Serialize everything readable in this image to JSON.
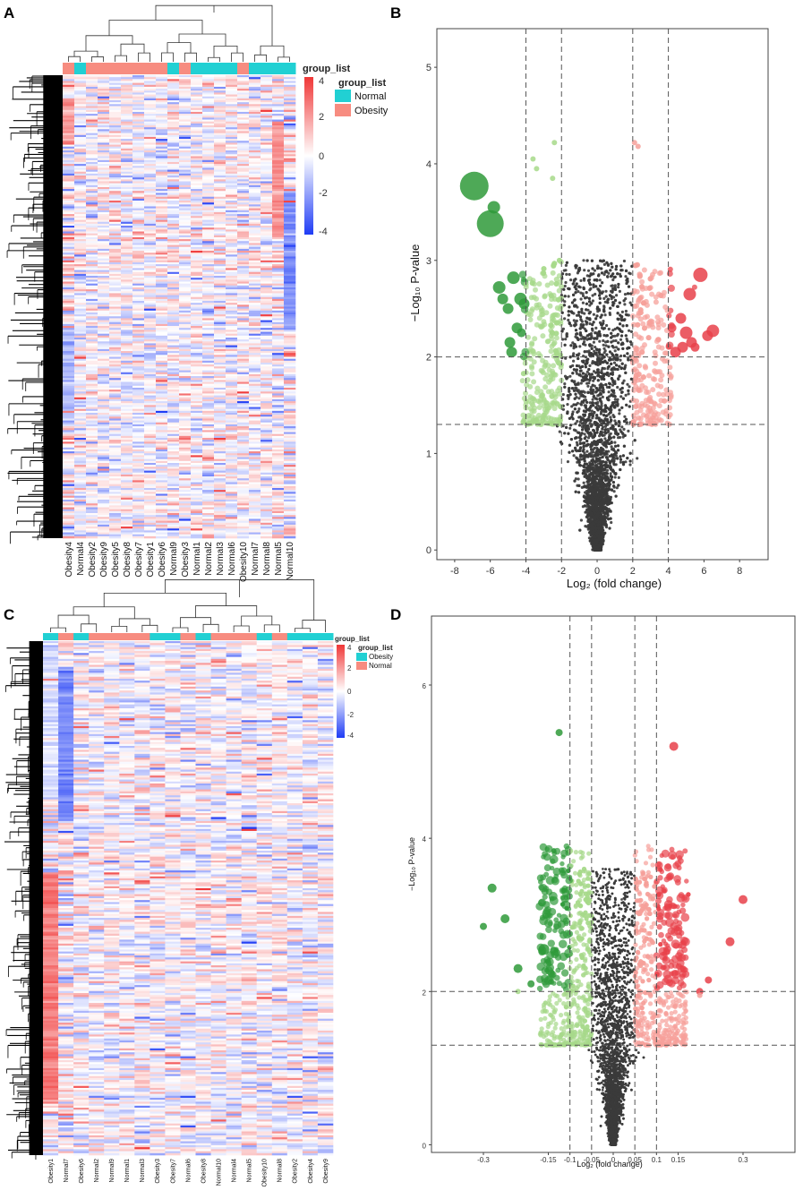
{
  "chart_data": [
    {
      "panel": "A",
      "type": "heatmap",
      "title": "",
      "columns": [
        "Obesity4",
        "Normal4",
        "Obesity2",
        "Obesity9",
        "Obesity5",
        "Obesity8",
        "Obesity7",
        "Obesity1",
        "Obesity6",
        "Normal9",
        "Obesity3",
        "Normal1",
        "Normal2",
        "Normal3",
        "Normal6",
        "Obesity10",
        "Normal7",
        "Normal8",
        "Normal5",
        "Normal10"
      ],
      "column_groups": [
        "Obesity",
        "Normal",
        "Obesity",
        "Obesity",
        "Obesity",
        "Obesity",
        "Obesity",
        "Obesity",
        "Obesity",
        "Normal",
        "Obesity",
        "Normal",
        "Normal",
        "Normal",
        "Normal",
        "Obesity",
        "Normal",
        "Normal",
        "Normal",
        "Normal"
      ],
      "legend_title": "group_list",
      "legend": [
        {
          "label": "Normal",
          "color": "#21d0d3"
        },
        {
          "label": "Obesity",
          "color": "#f78c80"
        }
      ],
      "colorbar": {
        "ticks": [
          "4",
          "2",
          "0",
          "-2",
          "-4"
        ],
        "range": [
          -4,
          4
        ],
        "low": "#1f3cf5",
        "mid": "#ffffff",
        "high": "#f03737"
      }
    },
    {
      "panel": "B",
      "type": "scatter",
      "title": "",
      "xlabel": "Log₂ (fold change)",
      "ylabel": "−Log₁₀ P-value",
      "xlim": [
        -9,
        9.6
      ],
      "ylim": [
        -0.1,
        5.4
      ],
      "xticks": [
        "-8",
        "-6",
        "-4",
        "-2",
        "0",
        "2",
        "4",
        "6",
        "8"
      ],
      "xtick_values": [
        -8,
        -6,
        -4,
        -2,
        0,
        2,
        4,
        6,
        8
      ],
      "yticks": [
        "0",
        "1",
        "2",
        "3",
        "4",
        "5"
      ],
      "ytick_values": [
        0,
        1,
        2,
        3,
        4,
        5
      ],
      "vlines": [
        -4,
        -2,
        2,
        4
      ],
      "hlines": [
        1.3,
        2
      ],
      "colors": {
        "ns": "#3b3b3b",
        "down_sig": "#2f9a3a",
        "down": "#a7d98a",
        "up_sig": "#e8414a",
        "up": "#f6a09a"
      },
      "highlighted_points": [
        {
          "x": -6.9,
          "y": 3.77,
          "s": 16,
          "c": "down_sig"
        },
        {
          "x": -6.0,
          "y": 3.38,
          "s": 15,
          "c": "down_sig"
        },
        {
          "x": -5.8,
          "y": 3.55,
          "s": 7,
          "c": "down_sig"
        },
        {
          "x": -5.5,
          "y": 2.72,
          "s": 7,
          "c": "down_sig"
        },
        {
          "x": -5.3,
          "y": 2.6,
          "s": 6,
          "c": "down_sig"
        },
        {
          "x": -4.7,
          "y": 2.82,
          "s": 7,
          "c": "down_sig"
        },
        {
          "x": -5.0,
          "y": 2.5,
          "s": 6,
          "c": "down_sig"
        },
        {
          "x": -4.3,
          "y": 2.6,
          "s": 7,
          "c": "down_sig"
        },
        {
          "x": -4.5,
          "y": 2.3,
          "s": 6,
          "c": "down_sig"
        },
        {
          "x": -4.9,
          "y": 2.15,
          "s": 6,
          "c": "down_sig"
        },
        {
          "x": -4.8,
          "y": 2.05,
          "s": 6,
          "c": "down_sig"
        },
        {
          "x": -4.1,
          "y": 2.55,
          "s": 6,
          "c": "down_sig"
        },
        {
          "x": -4.25,
          "y": 2.25,
          "s": 5,
          "c": "down_sig"
        },
        {
          "x": 6.5,
          "y": 2.27,
          "s": 7,
          "c": "up_sig"
        },
        {
          "x": 6.2,
          "y": 2.22,
          "s": 6,
          "c": "up_sig"
        },
        {
          "x": 5.8,
          "y": 2.85,
          "s": 8,
          "c": "up_sig"
        },
        {
          "x": 5.2,
          "y": 2.65,
          "s": 7,
          "c": "up_sig"
        },
        {
          "x": 5.0,
          "y": 2.25,
          "s": 7,
          "c": "up_sig"
        },
        {
          "x": 5.3,
          "y": 2.15,
          "s": 6,
          "c": "up_sig"
        },
        {
          "x": 4.7,
          "y": 2.4,
          "s": 6,
          "c": "up_sig"
        },
        {
          "x": 4.8,
          "y": 2.1,
          "s": 6,
          "c": "up_sig"
        },
        {
          "x": 4.4,
          "y": 2.05,
          "s": 6,
          "c": "up_sig"
        },
        {
          "x": 5.5,
          "y": 2.1,
          "s": 5,
          "c": "up_sig"
        },
        {
          "x": 4.2,
          "y": 2.3,
          "s": 5,
          "c": "up_sig"
        },
        {
          "x": -2.4,
          "y": 4.22,
          "s": 3,
          "c": "down"
        },
        {
          "x": -3.6,
          "y": 4.05,
          "s": 3,
          "c": "down"
        },
        {
          "x": -3.4,
          "y": 3.95,
          "s": 3,
          "c": "down"
        },
        {
          "x": -2.5,
          "y": 3.85,
          "s": 3,
          "c": "down"
        },
        {
          "x": 2.1,
          "y": 4.22,
          "s": 3,
          "c": "up"
        },
        {
          "x": 2.3,
          "y": 4.18,
          "s": 3,
          "c": "up"
        }
      ]
    },
    {
      "panel": "C",
      "type": "heatmap",
      "title": "",
      "columns": [
        "Obesity1",
        "Normal7",
        "Obesity6",
        "Normal2",
        "Normal9",
        "Normal1",
        "Normal3",
        "Obesity3",
        "Obesity7",
        "Normal6",
        "Obesity8",
        "Normal10",
        "Normal4",
        "Normal5",
        "Obesity10",
        "Normal8",
        "Obesity2",
        "Obesity4",
        "Obesity9"
      ],
      "column_groups": [
        "Obesity",
        "Normal",
        "Obesity",
        "Normal",
        "Normal",
        "Normal",
        "Normal",
        "Obesity",
        "Obesity",
        "Normal",
        "Obesity",
        "Normal",
        "Normal",
        "Normal",
        "Obesity",
        "Normal",
        "Obesity",
        "Obesity",
        "Obesity"
      ],
      "legend_title": "group_list",
      "legend": [
        {
          "label": "Obesity",
          "color": "#21d0d3"
        },
        {
          "label": "Normal",
          "color": "#f78c80"
        }
      ],
      "colorbar": {
        "ticks": [
          "4",
          "2",
          "0",
          "-2",
          "-4"
        ],
        "range": [
          -4,
          4
        ],
        "low": "#1f3cf5",
        "mid": "#ffffff",
        "high": "#f03737"
      }
    },
    {
      "panel": "D",
      "type": "scatter",
      "title": "",
      "xlabel": "Log₂ (fold change)",
      "ylabel": "−Log₁₀ P-value",
      "xlim": [
        -0.42,
        0.42
      ],
      "ylim": [
        -0.1,
        6.9
      ],
      "xticks": [
        "-0.3",
        "-0.15",
        "-0.1",
        "-0.05",
        "0",
        "0.05",
        "0.1",
        "0.15",
        "0.3"
      ],
      "xtick_values": [
        -0.3,
        -0.15,
        -0.1,
        -0.05,
        0,
        0.05,
        0.1,
        0.15,
        0.3
      ],
      "yticks": [
        "0",
        "2",
        "4",
        "6"
      ],
      "ytick_values": [
        0,
        2,
        4,
        6
      ],
      "vlines": [
        -0.1,
        -0.05,
        0.05,
        0.1
      ],
      "hlines": [
        1.3,
        2
      ],
      "colors": {
        "ns": "#3b3b3b",
        "down_sig": "#2f9a3a",
        "down": "#a7d98a",
        "up_sig": "#e8414a",
        "up": "#f6a09a"
      },
      "highlighted_points": [
        {
          "x": -0.125,
          "y": 5.38,
          "s": 4,
          "c": "down_sig"
        },
        {
          "x": -0.28,
          "y": 3.35,
          "s": 5,
          "c": "down_sig"
        },
        {
          "x": -0.3,
          "y": 2.85,
          "s": 4,
          "c": "down_sig"
        },
        {
          "x": -0.25,
          "y": 2.95,
          "s": 5,
          "c": "down_sig"
        },
        {
          "x": -0.22,
          "y": 2.3,
          "s": 5,
          "c": "down_sig"
        },
        {
          "x": -0.19,
          "y": 2.1,
          "s": 4,
          "c": "down_sig"
        },
        {
          "x": -0.16,
          "y": 2.55,
          "s": 6,
          "c": "down_sig"
        },
        {
          "x": 0.14,
          "y": 5.2,
          "s": 5,
          "c": "up_sig"
        },
        {
          "x": 0.3,
          "y": 3.2,
          "s": 5,
          "c": "up_sig"
        },
        {
          "x": 0.27,
          "y": 2.65,
          "s": 5,
          "c": "up_sig"
        },
        {
          "x": 0.22,
          "y": 2.15,
          "s": 4,
          "c": "up_sig"
        },
        {
          "x": 0.2,
          "y": 2.0,
          "s": 4,
          "c": "up_sig"
        },
        {
          "x": -0.22,
          "y": 2.0,
          "s": 3,
          "c": "down"
        },
        {
          "x": 0.2,
          "y": 1.95,
          "s": 3,
          "c": "up"
        }
      ]
    }
  ]
}
